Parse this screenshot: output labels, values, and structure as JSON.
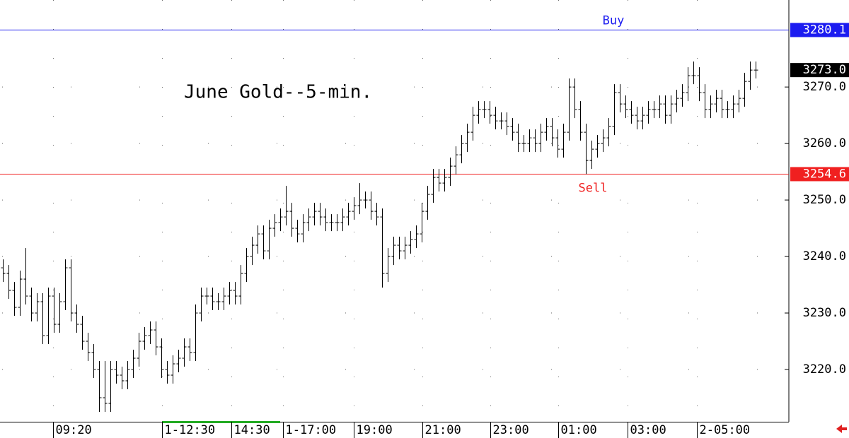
{
  "chart_data": {
    "type": "ohlc",
    "title": "June Gold--5-min.",
    "color": "#000000",
    "open": [
      3238,
      3237,
      3234,
      3231,
      3236,
      3233,
      3230,
      3232,
      3226,
      3233,
      3228,
      3232,
      3238,
      3230,
      3228,
      3225,
      3223,
      3220,
      3215,
      3214,
      3220,
      3219,
      3218,
      3220,
      3222,
      3225,
      3226,
      3227,
      3224,
      3220,
      3219,
      3221,
      3222,
      3224,
      3223,
      3230,
      3233,
      3233,
      3232,
      3232,
      3233,
      3234,
      3233,
      3237,
      3240,
      3242,
      3244,
      3241,
      3245,
      3246,
      3247,
      3248,
      3245,
      3244,
      3246,
      3247,
      3248,
      3247,
      3246,
      3246,
      3246,
      3247,
      3248,
      3249,
      3250,
      3250,
      3248,
      3247,
      3237,
      3240,
      3242,
      3241,
      3242,
      3243,
      3244,
      3248,
      3251,
      3254,
      3253,
      3254,
      3256,
      3258,
      3260,
      3262,
      3265,
      3266,
      3266,
      3265,
      3264,
      3264,
      3263,
      3262,
      3260,
      3260,
      3261,
      3260,
      3262,
      3263,
      3261,
      3259,
      3262,
      3270,
      3266,
      3262,
      3257,
      3259,
      3260,
      3261,
      3263,
      3269,
      3267,
      3266,
      3265,
      3264,
      3265,
      3266,
      3266,
      3267,
      3265,
      3267,
      3268,
      3269,
      3272,
      3272,
      3269,
      3266,
      3267,
      3268,
      3266,
      3266,
      3267,
      3268,
      3271,
      3273
    ],
    "high": [
      3239.5,
      3238.5,
      3235.5,
      3237.5,
      3241.5,
      3234.5,
      3233.5,
      3233.5,
      3234.5,
      3234.5,
      3233.5,
      3239.5,
      3239.5,
      3231.5,
      3229.5,
      3226.5,
      3224.5,
      3221.5,
      3221.5,
      3221.5,
      3221.5,
      3220.5,
      3221.5,
      3223.5,
      3226.5,
      3227.5,
      3228.5,
      3228.5,
      3225.5,
      3221.5,
      3222.5,
      3223.5,
      3225.5,
      3225.5,
      3231.5,
      3234.5,
      3234.5,
      3234.5,
      3233.5,
      3234.5,
      3235.5,
      3235.5,
      3238.5,
      3241.5,
      3243.5,
      3245.5,
      3245.5,
      3246.5,
      3247.5,
      3248.5,
      3252.5,
      3249.5,
      3246.5,
      3247.5,
      3248.5,
      3249.5,
      3249.5,
      3248.5,
      3247.5,
      3247.5,
      3248.5,
      3249.5,
      3250.5,
      3253,
      3251.5,
      3251.5,
      3249.5,
      3248.5,
      3241.5,
      3243.5,
      3243.5,
      3243.5,
      3244.5,
      3245.5,
      3249.5,
      3252.5,
      3255.5,
      3255.5,
      3255.5,
      3257.5,
      3259.5,
      3261.5,
      3263.5,
      3266.5,
      3267.5,
      3267.5,
      3267.5,
      3266.5,
      3265.5,
      3265.5,
      3264.5,
      3263.5,
      3261.5,
      3262.5,
      3262.5,
      3263.5,
      3264.5,
      3264.5,
      3262.5,
      3263.5,
      3271.5,
      3271.5,
      3267.5,
      3263.5,
      3260.5,
      3261.5,
      3262.5,
      3264.5,
      3270.5,
      3270.5,
      3268.5,
      3267.5,
      3266.5,
      3266.5,
      3267.5,
      3267.5,
      3268.5,
      3268.5,
      3268.5,
      3269.5,
      3270.5,
      3273.5,
      3274.5,
      3273.5,
      3270.5,
      3268.5,
      3269.5,
      3269.5,
      3267.5,
      3268.5,
      3269.5,
      3272.5,
      3274.5,
      3274.5
    ],
    "low": [
      3235.5,
      3232.5,
      3229.5,
      3229.5,
      3231.5,
      3228.5,
      3228.5,
      3224.5,
      3224.5,
      3226.5,
      3226.5,
      3230.5,
      3228.5,
      3226.5,
      3223.5,
      3221.5,
      3218.5,
      3212.5,
      3212.5,
      3212.5,
      3217.5,
      3216.5,
      3216.5,
      3218.5,
      3220.5,
      3223.5,
      3224.5,
      3222.5,
      3218.5,
      3217.5,
      3217.5,
      3219.5,
      3220.5,
      3221.5,
      3221.5,
      3228.5,
      3231.5,
      3230.5,
      3230.5,
      3230.5,
      3231.5,
      3231.5,
      3231.5,
      3235.5,
      3238.5,
      3240.5,
      3239.5,
      3239.5,
      3243.5,
      3244.5,
      3245.5,
      3243.5,
      3242.5,
      3242.5,
      3244.5,
      3245.5,
      3245.5,
      3244.5,
      3244.5,
      3244.5,
      3244.5,
      3245.5,
      3246.5,
      3247.5,
      3248.5,
      3246.5,
      3245.5,
      3234.5,
      3235.5,
      3238.5,
      3239.5,
      3239.5,
      3240.5,
      3241.5,
      3242.5,
      3246.5,
      3249.5,
      3251.5,
      3251.5,
      3252.5,
      3254.5,
      3256.5,
      3258.5,
      3260.5,
      3263.5,
      3264.5,
      3263.5,
      3262.5,
      3262.5,
      3261.5,
      3260.5,
      3258.5,
      3258.5,
      3258.5,
      3258.5,
      3258.5,
      3260.5,
      3259.5,
      3257.5,
      3257.5,
      3260.5,
      3264.5,
      3260.5,
      3254.6,
      3255.5,
      3257.5,
      3258.5,
      3259.5,
      3261.5,
      3265.5,
      3264.5,
      3263.5,
      3262.5,
      3262.5,
      3263.5,
      3264.5,
      3264.5,
      3263.5,
      3263.5,
      3265.5,
      3266.5,
      3267.5,
      3270.5,
      3267.5,
      3264.5,
      3264.5,
      3265.5,
      3264.5,
      3264.5,
      3264.5,
      3265.5,
      3266.5,
      3269.5,
      3271.5
    ],
    "close": [
      3237,
      3234,
      3231,
      3236,
      3233,
      3230,
      3232,
      3226,
      3233,
      3228,
      3232,
      3238,
      3230,
      3228,
      3225,
      3223,
      3220,
      3215,
      3214,
      3220,
      3219,
      3218,
      3220,
      3222,
      3225,
      3226,
      3227,
      3224,
      3220,
      3219,
      3221,
      3222,
      3224,
      3223,
      3230,
      3233,
      3233,
      3232,
      3232,
      3233,
      3234,
      3233,
      3237,
      3240,
      3242,
      3244,
      3241,
      3245,
      3246,
      3247,
      3248,
      3245,
      3244,
      3246,
      3247,
      3248,
      3247,
      3246,
      3246,
      3246,
      3247,
      3248,
      3249,
      3250,
      3250,
      3248,
      3247,
      3237,
      3240,
      3242,
      3241,
      3242,
      3243,
      3244,
      3248,
      3251,
      3254,
      3253,
      3254,
      3256,
      3258,
      3260,
      3262,
      3265,
      3266,
      3266,
      3265,
      3264,
      3264,
      3263,
      3262,
      3260,
      3260,
      3261,
      3260,
      3262,
      3263,
      3261,
      3259,
      3262,
      3270,
      3266,
      3262,
      3257,
      3259,
      3260,
      3261,
      3263,
      3269,
      3267,
      3266,
      3265,
      3264,
      3265,
      3266,
      3266,
      3267,
      3265,
      3267,
      3268,
      3269,
      3272,
      3272,
      3269,
      3266,
      3267,
      3268,
      3266,
      3266,
      3267,
      3268,
      3271,
      3273,
      3273
    ],
    "xlim": [
      -0.5,
      138.9
    ],
    "xticks": [
      {
        "value": 8.9,
        "label": "09:20"
      },
      {
        "value": 28.1,
        "label": "1-12:30"
      },
      {
        "value": 40.4,
        "label": "14:30"
      },
      {
        "value": 49.5,
        "label": "1-17:00"
      },
      {
        "value": 62,
        "label": "19:00"
      },
      {
        "value": 74.1,
        "label": "21:00"
      },
      {
        "value": 86.1,
        "label": "23:00"
      },
      {
        "value": 98.2,
        "label": "01:00"
      },
      {
        "value": 110.4,
        "label": "03:00"
      },
      {
        "value": 122.6,
        "label": "2-05:00"
      }
    ],
    "ylim": [
      3210.75,
      3285.4
    ],
    "yticks": [
      {
        "value": 3220,
        "label": "3220.0"
      },
      {
        "value": 3230,
        "label": "3230.0"
      },
      {
        "value": 3240,
        "label": "3240.0"
      },
      {
        "value": 3250,
        "label": "3250.0"
      },
      {
        "value": 3260,
        "label": "3260.0"
      },
      {
        "value": 3270,
        "label": "3270.0"
      }
    ],
    "levels": [
      {
        "name": "Buy",
        "value": 3280.1,
        "color": "#1c1cf0"
      },
      {
        "name": "Sell",
        "value": 3254.6,
        "color": "#f02020"
      }
    ],
    "last_price": {
      "value": 3273,
      "label": "3273.0"
    },
    "grid": true
  }
}
